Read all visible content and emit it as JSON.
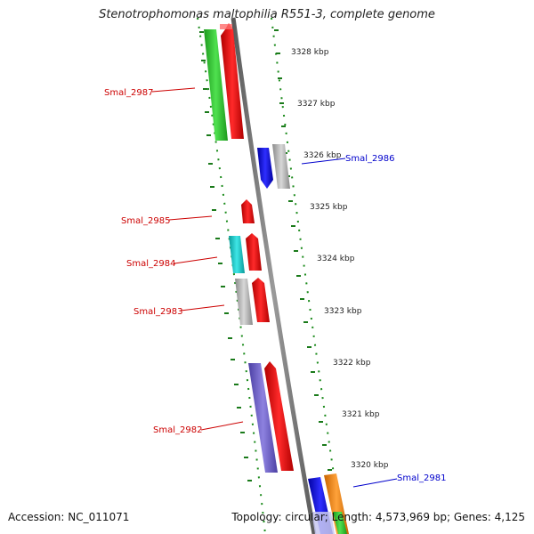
{
  "title": "Stenotrophomonas maltophilia R551-3, complete genome",
  "footer": {
    "accession": "Accession: NC_011071",
    "summary": "Topology: circular; Length: 4,573,969 bp; Genes: 4,125"
  },
  "scale_labels": [
    "3328 kbp",
    "3327 kbp",
    "3326 kbp",
    "3325 kbp",
    "3324 kbp",
    "3323 kbp",
    "3322 kbp",
    "3321 kbp",
    "3320 kbp"
  ],
  "genes": [
    {
      "name": "Smal_2987",
      "strand": "forward",
      "color": "#cc0000",
      "bar_colors": [
        "#33cc33",
        "#ff0000"
      ]
    },
    {
      "name": "Smal_2986",
      "strand": "reverse",
      "color": "#0000cc",
      "bar_colors": [
        "#0000ff",
        "#bbbbbb"
      ]
    },
    {
      "name": "Smal_2985",
      "strand": "forward",
      "color": "#cc0000",
      "bar_colors": [
        "#ff0000"
      ]
    },
    {
      "name": "Smal_2984",
      "strand": "forward",
      "color": "#cc0000",
      "bar_colors": [
        "#22cccc",
        "#ff0000"
      ]
    },
    {
      "name": "Smal_2983",
      "strand": "forward",
      "color": "#cc0000",
      "bar_colors": [
        "#bbbbbb",
        "#ff0000"
      ]
    },
    {
      "name": "Smal_2982",
      "strand": "forward",
      "color": "#cc0000",
      "bar_colors": [
        "#7766cc",
        "#ff0000"
      ]
    },
    {
      "name": "Smal_2981",
      "strand": "reverse",
      "color": "#0000cc",
      "bar_colors": [
        "#0000ff",
        "#ff8800",
        "#33cc33"
      ]
    }
  ]
}
